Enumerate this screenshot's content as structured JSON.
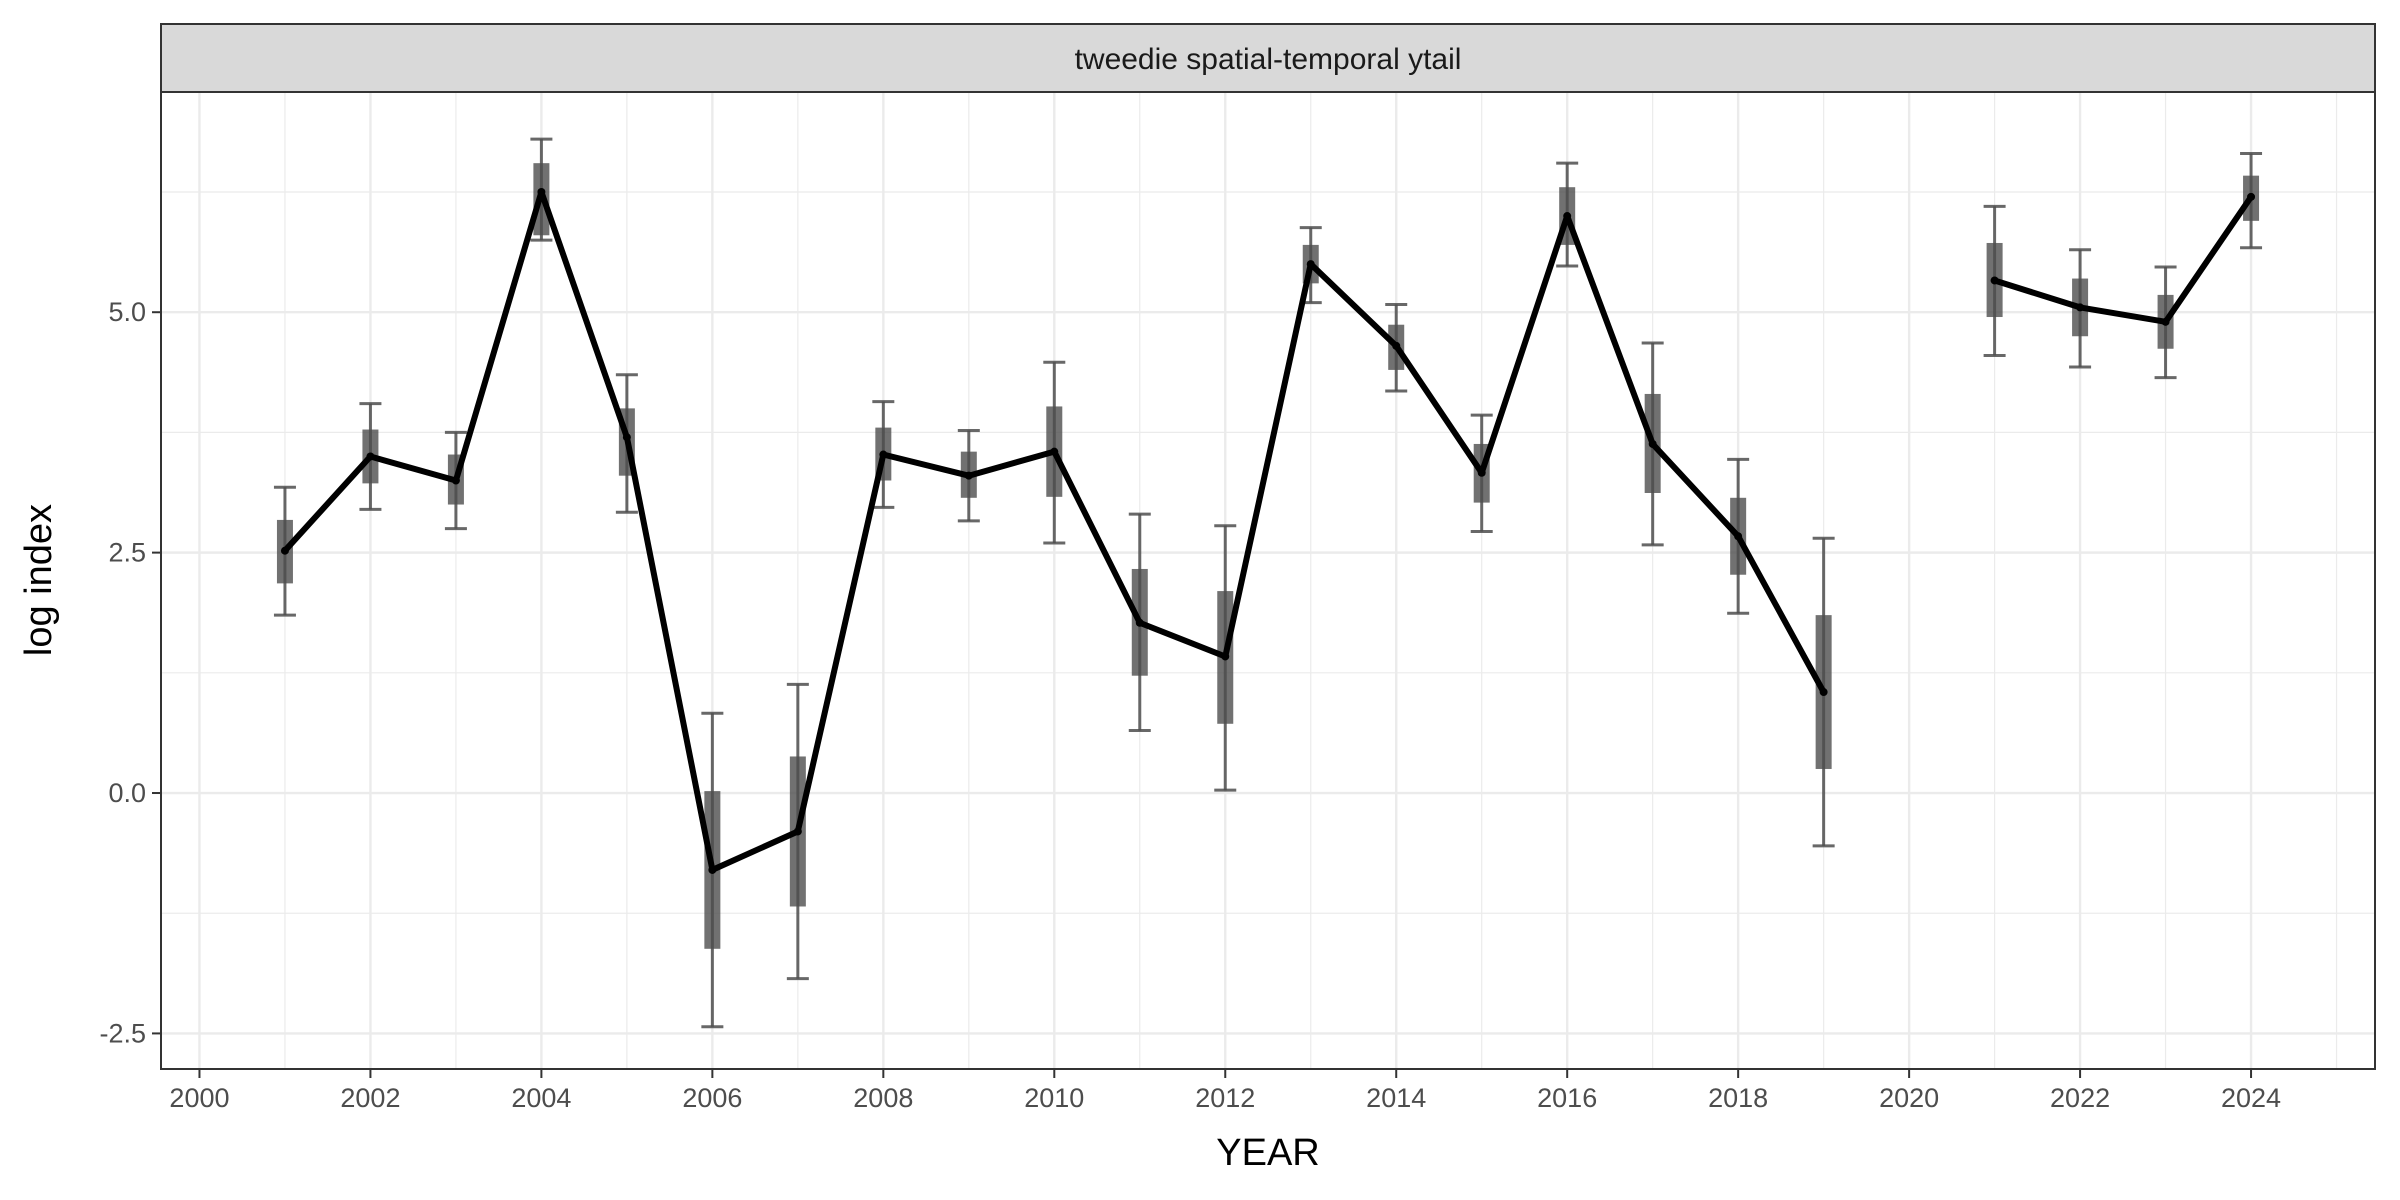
{
  "chart_data": {
    "type": "line",
    "facet_label": "tweedie spatial-temporal ytail",
    "xlabel": "YEAR",
    "ylabel": "log index",
    "xlim": [
      1999.55,
      2025.45
    ],
    "ylim": [
      -2.87,
      7.29
    ],
    "x_ticks": [
      "2000",
      "2002",
      "2004",
      "2006",
      "2008",
      "2010",
      "2012",
      "2014",
      "2016",
      "2018",
      "2020",
      "2022",
      "2024"
    ],
    "y_ticks": [
      "-2.5",
      "0.0",
      "2.5",
      "5.0"
    ],
    "grid": true,
    "colors": {
      "line": "#000000",
      "interval": "#4d4d4d",
      "grid": "#ebebeb",
      "strip": "#d9d9d9",
      "border": "#333333"
    },
    "series": [
      {
        "points": [
          {
            "x": 2001,
            "y": 2.52,
            "se_lo": 2.18,
            "se_hi": 2.84,
            "ci_lo": 1.85,
            "ci_hi": 3.18
          },
          {
            "x": 2002,
            "y": 3.5,
            "se_lo": 3.22,
            "se_hi": 3.78,
            "ci_lo": 2.95,
            "ci_hi": 4.05
          },
          {
            "x": 2003,
            "y": 3.25,
            "se_lo": 3.0,
            "se_hi": 3.52,
            "ci_lo": 2.75,
            "ci_hi": 3.75
          },
          {
            "x": 2004,
            "y": 6.25,
            "se_lo": 5.8,
            "se_hi": 6.55,
            "ci_lo": 5.75,
            "ci_hi": 6.8
          },
          {
            "x": 2005,
            "y": 3.7,
            "se_lo": 3.3,
            "se_hi": 4.0,
            "ci_lo": 2.92,
            "ci_hi": 4.35
          },
          {
            "x": 2006,
            "y": -0.8,
            "se_lo": -1.62,
            "se_hi": 0.02,
            "ci_lo": -2.43,
            "ci_hi": 0.83
          },
          {
            "x": 2007,
            "y": -0.4,
            "se_lo": -1.18,
            "se_hi": 0.38,
            "ci_lo": -1.93,
            "ci_hi": 1.13
          },
          {
            "x": 2008,
            "y": 3.52,
            "se_lo": 3.25,
            "se_hi": 3.8,
            "ci_lo": 2.97,
            "ci_hi": 4.07
          },
          {
            "x": 2009,
            "y": 3.3,
            "se_lo": 3.07,
            "se_hi": 3.55,
            "ci_lo": 2.83,
            "ci_hi": 3.77
          },
          {
            "x": 2010,
            "y": 3.55,
            "se_lo": 3.08,
            "se_hi": 4.02,
            "ci_lo": 2.6,
            "ci_hi": 4.48
          },
          {
            "x": 2011,
            "y": 1.77,
            "se_lo": 1.22,
            "se_hi": 2.33,
            "ci_lo": 0.65,
            "ci_hi": 2.9
          },
          {
            "x": 2012,
            "y": 1.42,
            "se_lo": 0.72,
            "se_hi": 2.1,
            "ci_lo": 0.03,
            "ci_hi": 2.78
          },
          {
            "x": 2013,
            "y": 5.5,
            "se_lo": 5.3,
            "se_hi": 5.7,
            "ci_lo": 5.1,
            "ci_hi": 5.88
          },
          {
            "x": 2014,
            "y": 4.65,
            "se_lo": 4.4,
            "se_hi": 4.87,
            "ci_lo": 4.18,
            "ci_hi": 5.08
          },
          {
            "x": 2015,
            "y": 3.33,
            "se_lo": 3.02,
            "se_hi": 3.63,
            "ci_lo": 2.72,
            "ci_hi": 3.93
          },
          {
            "x": 2016,
            "y": 6.0,
            "se_lo": 5.7,
            "se_hi": 6.3,
            "ci_lo": 5.48,
            "ci_hi": 6.55
          },
          {
            "x": 2017,
            "y": 3.63,
            "se_lo": 3.12,
            "se_hi": 4.15,
            "ci_lo": 2.58,
            "ci_hi": 4.68
          },
          {
            "x": 2018,
            "y": 2.67,
            "se_lo": 2.27,
            "se_hi": 3.07,
            "ci_lo": 1.87,
            "ci_hi": 3.47
          },
          {
            "x": 2019,
            "y": 1.05,
            "se_lo": 0.25,
            "se_hi": 1.85,
            "ci_lo": -0.55,
            "ci_hi": 2.65
          }
        ]
      },
      {
        "points": [
          {
            "x": 2021,
            "y": 5.33,
            "se_lo": 4.95,
            "se_hi": 5.72,
            "ci_lo": 4.55,
            "ci_hi": 6.1
          },
          {
            "x": 2022,
            "y": 5.05,
            "se_lo": 4.75,
            "se_hi": 5.35,
            "ci_lo": 4.43,
            "ci_hi": 5.65
          },
          {
            "x": 2023,
            "y": 4.9,
            "se_lo": 4.62,
            "se_hi": 5.18,
            "ci_lo": 4.32,
            "ci_hi": 5.47
          },
          {
            "x": 2024,
            "y": 6.2,
            "se_lo": 5.95,
            "se_hi": 6.42,
            "ci_lo": 5.67,
            "ci_hi": 6.65
          }
        ]
      }
    ]
  }
}
